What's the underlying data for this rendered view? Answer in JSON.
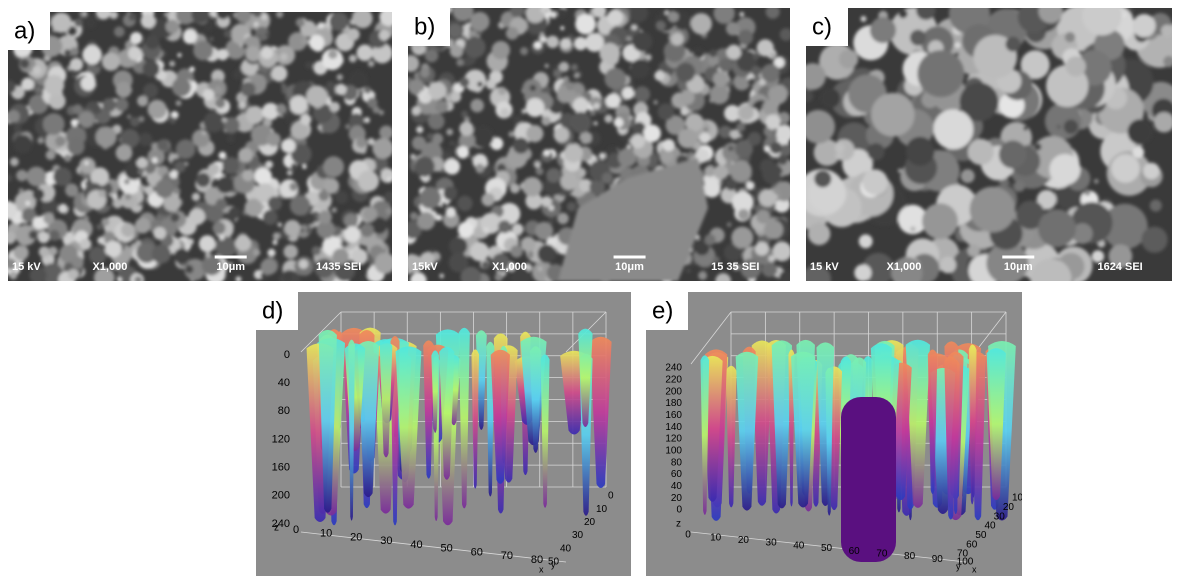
{
  "panels": [
    {
      "label": "a)",
      "footer": [
        "15 kV",
        "X1,000",
        "10μm",
        "1435 SEI"
      ]
    },
    {
      "label": "b)",
      "footer": [
        "15kV",
        "X1,000",
        "10μm",
        "15 35 SEI"
      ]
    },
    {
      "label": "c)",
      "footer": [
        "15 kV",
        "X1,000",
        "10μm",
        "1624 SEI"
      ]
    },
    {
      "label": "d)",
      "z_label": "z",
      "x_label": "x",
      "y_label": "y",
      "zticks": [
        0,
        40,
        80,
        120,
        160,
        200,
        240
      ],
      "xticks": [
        0,
        10,
        20,
        30,
        40,
        50,
        60,
        70,
        80
      ],
      "yticks": [
        0,
        10,
        20,
        30,
        40,
        50
      ]
    },
    {
      "label": "e)",
      "z_label": "z",
      "x_label": "x",
      "y_label": "y",
      "zticks": [
        0,
        20,
        40,
        60,
        80,
        100,
        120,
        140,
        160,
        180,
        200,
        220,
        240
      ],
      "xticks": [
        0,
        10,
        20,
        30,
        40,
        50,
        60,
        70,
        80,
        90,
        100
      ],
      "yticks": [
        10,
        20,
        30,
        40,
        50,
        60,
        70
      ]
    }
  ]
}
